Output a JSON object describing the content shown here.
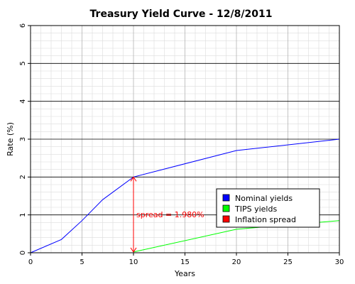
{
  "chart_data": {
    "type": "line",
    "title": "Treasury Yield Curve - 12/8/2011",
    "xlabel": "Years",
    "ylabel": "Rate (%)",
    "xlim": [
      0,
      30
    ],
    "ylim": [
      0,
      6
    ],
    "x_ticks": [
      0,
      5,
      10,
      15,
      20,
      25,
      30
    ],
    "y_ticks": [
      0,
      1,
      2,
      3,
      4,
      5,
      6
    ],
    "grid": true,
    "legend_position": "lower-right",
    "series": [
      {
        "name": "Nominal yields",
        "color": "#0000ff",
        "x": [
          0,
          3,
          5,
          7,
          10,
          20,
          30
        ],
        "y": [
          0.0,
          0.35,
          0.85,
          1.4,
          2.0,
          2.7,
          3.0
        ]
      },
      {
        "name": "TIPS yields",
        "color": "#00ff00",
        "x": [
          10,
          20,
          30
        ],
        "y": [
          0.02,
          0.62,
          0.85
        ]
      },
      {
        "name": "Inflation spread",
        "color": "#ff0000",
        "x": [],
        "y": []
      }
    ],
    "annotation": {
      "text": "spread = 1.980%",
      "x": 10,
      "y_from": 0.02,
      "y_to": 2.0,
      "color": "#ff0000"
    }
  }
}
